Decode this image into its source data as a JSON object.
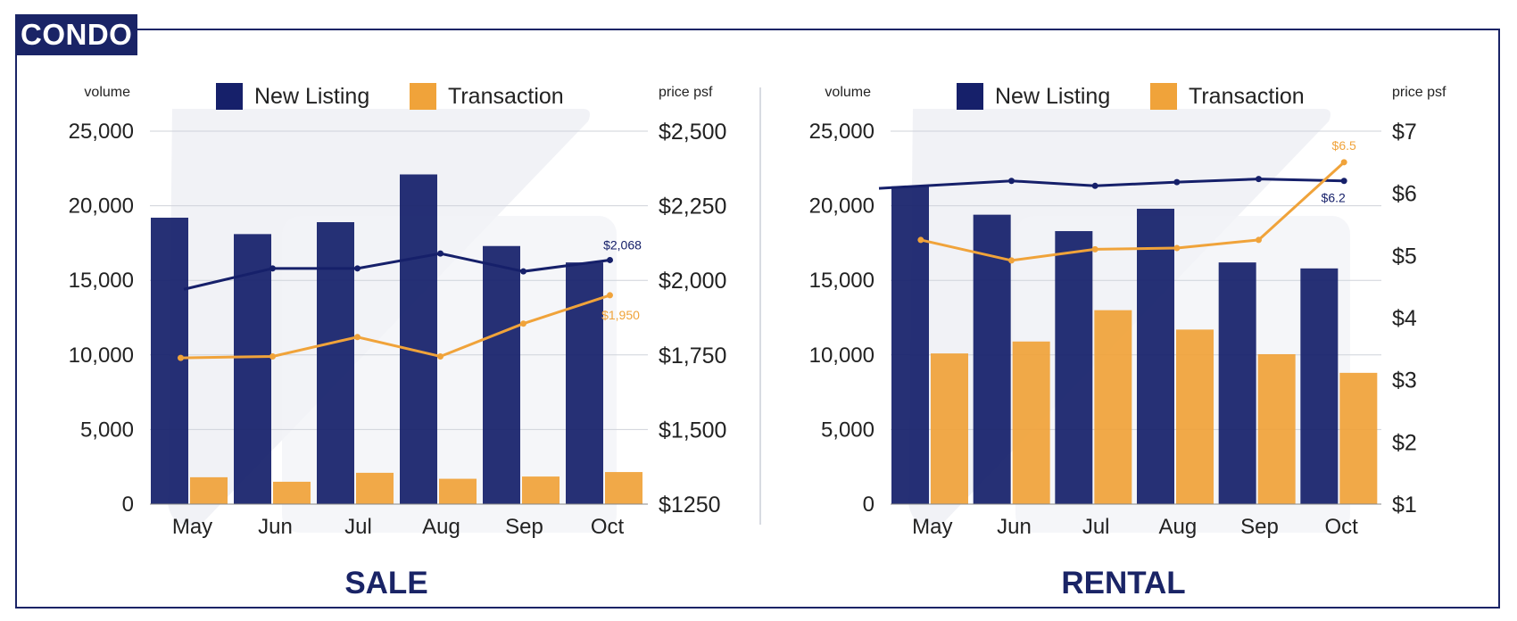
{
  "badge": "CONDO",
  "colors": {
    "new_listing": "#16206a",
    "transaction": "#f0a33a",
    "frame": "#1a2466",
    "grid": "#cfd3da"
  },
  "chart_data": [
    {
      "type": "bar",
      "title": "SALE",
      "categories": [
        "May",
        "Jun",
        "Jul",
        "Aug",
        "Sep",
        "Oct"
      ],
      "y_left_label": "volume",
      "y_right_label": "price psf",
      "y_left_ticks": [
        "0",
        "5,000",
        "10,000",
        "15,000",
        "20,000",
        "25,000"
      ],
      "y_right_ticks": [
        "$1250",
        "$1,500",
        "$1,750",
        "$2,000",
        "$2,250",
        "$2,500"
      ],
      "ylim": [
        0,
        25000
      ],
      "y2lim": [
        1250,
        2500
      ],
      "legend": [
        "New Listing",
        "Transaction"
      ],
      "series": [
        {
          "name": "New Listing",
          "kind": "bar",
          "values": [
            19200,
            18100,
            18900,
            22100,
            17300,
            16200
          ]
        },
        {
          "name": "Transaction",
          "kind": "bar",
          "values": [
            1800,
            1500,
            2100,
            1700,
            1850,
            2150
          ]
        },
        {
          "name": "New Listing",
          "kind": "line",
          "axis": "right",
          "values": [
            1970,
            2040,
            2040,
            2090,
            2030,
            2068
          ],
          "end_label": "$2,068"
        },
        {
          "name": "Transaction",
          "kind": "line",
          "axis": "right",
          "values": [
            1740,
            1745,
            1810,
            1745,
            1855,
            1950
          ],
          "end_label": "$1,950"
        }
      ]
    },
    {
      "type": "bar",
      "title": "RENTAL",
      "categories": [
        "May",
        "Jun",
        "Jul",
        "Aug",
        "Sep",
        "Oct"
      ],
      "y_left_label": "volume",
      "y_right_label": "price psf",
      "y_left_ticks": [
        "0",
        "5,000",
        "10,000",
        "15,000",
        "20,000",
        "25,000"
      ],
      "y_right_ticks": [
        "$1",
        "$2",
        "$3",
        "$4",
        "$5",
        "$6",
        "$7"
      ],
      "ylim": [
        0,
        25000
      ],
      "y2lim": [
        1,
        7
      ],
      "legend": [
        "New Listing",
        "Transaction"
      ],
      "series": [
        {
          "name": "New Listing",
          "kind": "bar",
          "values": [
            21300,
            19400,
            18300,
            19800,
            16200,
            15800
          ]
        },
        {
          "name": "Transaction",
          "kind": "bar",
          "values": [
            10100,
            10900,
            13000,
            11700,
            10050,
            8800
          ]
        },
        {
          "name": "New Listing",
          "kind": "line",
          "axis": "right",
          "values": [
            6.08,
            6.2,
            6.12,
            6.18,
            6.23,
            6.2
          ],
          "end_label": "$6.2"
        },
        {
          "name": "Transaction",
          "kind": "line",
          "axis": "right",
          "values": [
            5.25,
            4.92,
            5.1,
            5.12,
            5.25,
            6.5
          ],
          "end_label": "$6.5"
        }
      ]
    }
  ]
}
